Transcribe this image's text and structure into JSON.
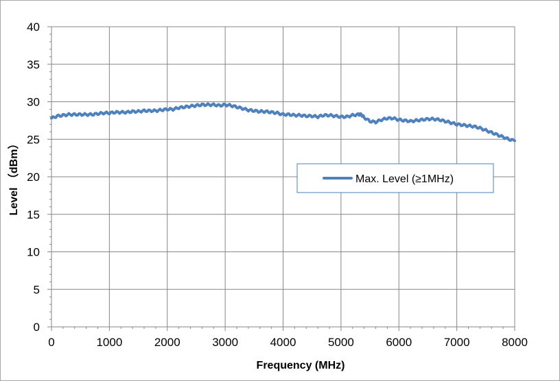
{
  "chart_data": {
    "type": "line",
    "title": "",
    "xlabel": "Frequency (MHz)",
    "ylabel": "Level （dBm）",
    "xlim": [
      0,
      8000
    ],
    "ylim": [
      0,
      40
    ],
    "x_ticks": [
      "0",
      "1000",
      "2000",
      "3000",
      "4000",
      "5000",
      "6000",
      "7000",
      "8000"
    ],
    "y_ticks": [
      "0",
      "5",
      "10",
      "15",
      "20",
      "25",
      "30",
      "35",
      "40"
    ],
    "grid": true,
    "legend_position": "center-right",
    "series": [
      {
        "name": "Max. Level (≥1MHz)",
        "color": "#4f81bd",
        "x": [
          0,
          100,
          200,
          300,
          400,
          500,
          600,
          700,
          800,
          900,
          1000,
          1100,
          1200,
          1300,
          1400,
          1500,
          1600,
          1700,
          1800,
          1900,
          2000,
          2100,
          2200,
          2300,
          2400,
          2500,
          2600,
          2700,
          2800,
          2900,
          3000,
          3100,
          3200,
          3300,
          3400,
          3500,
          3600,
          3700,
          3800,
          3900,
          4000,
          4100,
          4200,
          4300,
          4400,
          4500,
          4600,
          4700,
          4800,
          4900,
          5000,
          5100,
          5200,
          5300,
          5350,
          5400,
          5500,
          5600,
          5700,
          5800,
          5900,
          6000,
          6100,
          6200,
          6300,
          6400,
          6500,
          6600,
          6700,
          6800,
          6900,
          7000,
          7100,
          7200,
          7300,
          7400,
          7500,
          7600,
          7700,
          7800,
          7900,
          8000
        ],
        "y": [
          27.8,
          28.1,
          28.2,
          28.3,
          28.3,
          28.3,
          28.3,
          28.3,
          28.4,
          28.5,
          28.5,
          28.6,
          28.6,
          28.6,
          28.7,
          28.7,
          28.8,
          28.8,
          28.8,
          28.9,
          29.0,
          29.0,
          29.2,
          29.3,
          29.4,
          29.5,
          29.6,
          29.6,
          29.6,
          29.5,
          29.6,
          29.5,
          29.3,
          29.1,
          28.9,
          28.8,
          28.7,
          28.7,
          28.6,
          28.5,
          28.3,
          28.3,
          28.2,
          28.2,
          28.1,
          28.1,
          28.0,
          28.2,
          28.2,
          28.1,
          28.0,
          28.0,
          28.2,
          28.3,
          28.3,
          27.9,
          27.4,
          27.3,
          27.6,
          27.8,
          27.8,
          27.6,
          27.5,
          27.4,
          27.5,
          27.6,
          27.7,
          27.7,
          27.6,
          27.4,
          27.2,
          27.0,
          26.9,
          26.8,
          26.7,
          26.5,
          26.2,
          25.9,
          25.6,
          25.3,
          25.0,
          24.8
        ]
      }
    ]
  }
}
